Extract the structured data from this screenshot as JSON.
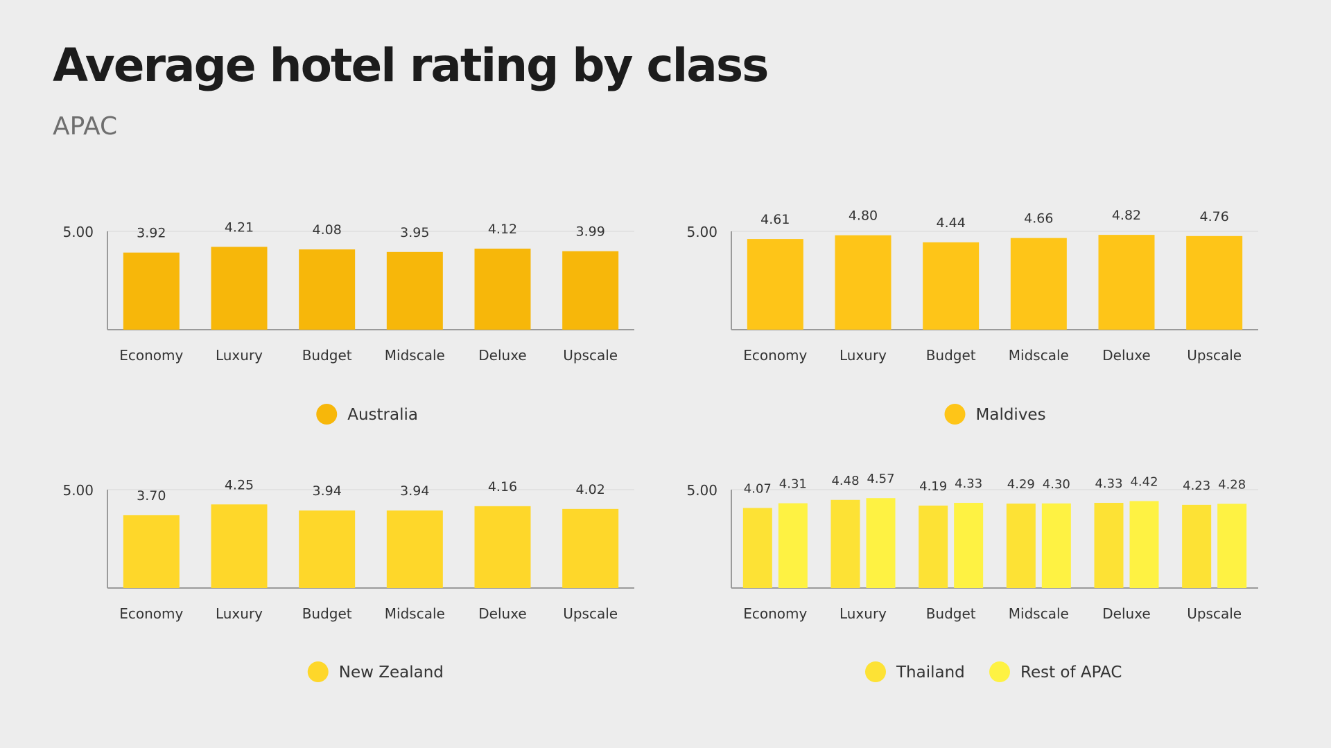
{
  "page": {
    "title": "Average hotel rating by class",
    "subtitle": "APAC"
  },
  "chart_data": [
    {
      "type": "bar",
      "categories": [
        "Economy",
        "Luxury",
        "Budget",
        "Midscale",
        "Deluxe",
        "Upscale"
      ],
      "series": [
        {
          "name": "Australia",
          "values": [
            3.92,
            4.21,
            4.08,
            3.95,
            4.12,
            3.99
          ],
          "color": "#f7b70a"
        }
      ],
      "ylim": [
        0,
        5
      ],
      "ytick": "5.00",
      "grid": true,
      "legend": "bottom"
    },
    {
      "type": "bar",
      "categories": [
        "Economy",
        "Luxury",
        "Budget",
        "Midscale",
        "Deluxe",
        "Upscale"
      ],
      "series": [
        {
          "name": "Maldives",
          "values": [
            4.61,
            4.8,
            4.44,
            4.66,
            4.82,
            4.76
          ],
          "color": "#fec518"
        }
      ],
      "ylim": [
        0,
        5
      ],
      "ytick": "5.00",
      "grid": true,
      "legend": "bottom"
    },
    {
      "type": "bar",
      "categories": [
        "Economy",
        "Luxury",
        "Budget",
        "Midscale",
        "Deluxe",
        "Upscale"
      ],
      "series": [
        {
          "name": "New Zealand",
          "values": [
            3.7,
            4.25,
            3.94,
            3.94,
            4.16,
            4.02
          ],
          "color": "#fed72a"
        }
      ],
      "ylim": [
        0,
        5
      ],
      "ytick": "5.00",
      "grid": true,
      "legend": "bottom"
    },
    {
      "type": "bar",
      "categories": [
        "Economy",
        "Luxury",
        "Budget",
        "Midscale",
        "Deluxe",
        "Upscale"
      ],
      "series": [
        {
          "name": "Thailand",
          "values": [
            4.07,
            4.48,
            4.19,
            4.29,
            4.33,
            4.23
          ],
          "color": "#fde235"
        },
        {
          "name": "Rest of APAC",
          "values": [
            4.31,
            4.57,
            4.33,
            4.3,
            4.42,
            4.28
          ],
          "color": "#fef243"
        }
      ],
      "ylim": [
        0,
        5
      ],
      "ytick": "5.00",
      "grid": true,
      "legend": "bottom"
    }
  ]
}
